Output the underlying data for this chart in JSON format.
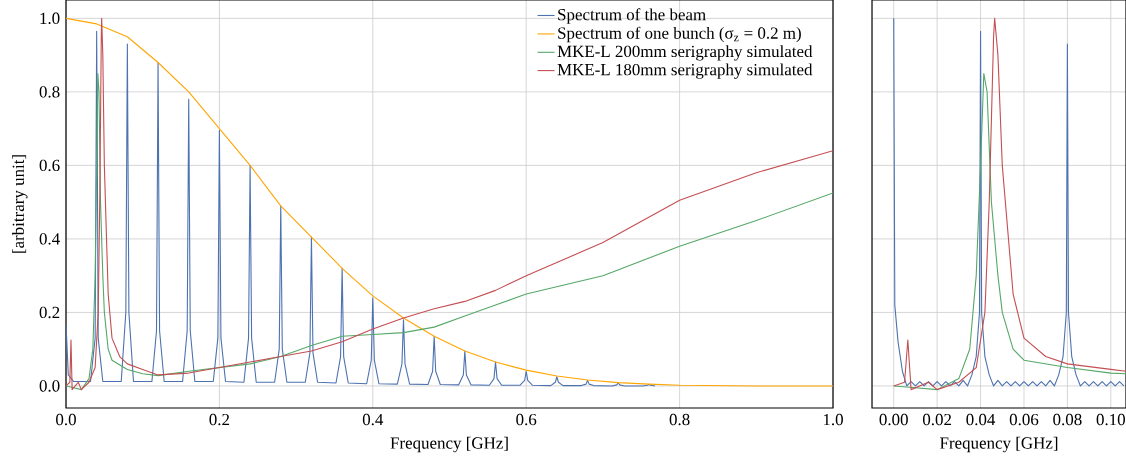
{
  "chart_data": [
    {
      "type": "line",
      "xlabel": "Frequency [GHz]",
      "ylabel": "[arbitrary unit]",
      "xlim": [
        0,
        1.0
      ],
      "ylim": [
        -0.06,
        1.05
      ],
      "xticks": [
        {
          "value": 0,
          "label": "0.0"
        },
        {
          "value": 0.2,
          "label": "0.2"
        },
        {
          "value": 0.4,
          "label": "0.4"
        },
        {
          "value": 0.6,
          "label": "0.6"
        },
        {
          "value": 0.8,
          "label": "0.8"
        },
        {
          "value": 1.0,
          "label": "1.0"
        }
      ],
      "yticks": [
        {
          "value": 0,
          "label": "0.0"
        },
        {
          "value": 0.2,
          "label": "0.2"
        },
        {
          "value": 0.4,
          "label": "0.4"
        },
        {
          "value": 0.6,
          "label": "0.6"
        },
        {
          "value": 0.8,
          "label": "0.8"
        },
        {
          "value": 1.0,
          "label": "1.0"
        }
      ],
      "grid": true,
      "legend": "top right",
      "marker": "none",
      "line_style": "solid",
      "series": [
        {
          "name": "Spectrum of the beam",
          "color": "#4c72b0",
          "x": [
            0,
            0.003,
            0.01,
            0.032,
            0.038,
            0.04,
            0.042,
            0.048,
            0.072,
            0.078,
            0.08,
            0.082,
            0.088,
            0.112,
            0.118,
            0.12,
            0.122,
            0.128,
            0.152,
            0.158,
            0.16,
            0.162,
            0.168,
            0.192,
            0.198,
            0.2,
            0.202,
            0.208,
            0.232,
            0.238,
            0.24,
            0.242,
            0.248,
            0.272,
            0.278,
            0.28,
            0.282,
            0.288,
            0.312,
            0.318,
            0.32,
            0.322,
            0.328,
            0.352,
            0.358,
            0.36,
            0.362,
            0.368,
            0.392,
            0.398,
            0.4,
            0.402,
            0.408,
            0.432,
            0.438,
            0.44,
            0.442,
            0.448,
            0.472,
            0.478,
            0.48,
            0.482,
            0.488,
            0.512,
            0.518,
            0.52,
            0.522,
            0.528,
            0.552,
            0.558,
            0.56,
            0.562,
            0.568,
            0.592,
            0.598,
            0.6,
            0.602,
            0.608,
            0.632,
            0.638,
            0.64,
            0.642,
            0.648,
            0.672,
            0.678,
            0.68,
            0.682,
            0.688,
            0.712,
            0.718,
            0.72,
            0.722,
            0.728,
            0.752,
            0.758,
            0.76,
            0.762,
            0.768
          ],
          "values": [
            0.17,
            0.03,
            0.012,
            0.012,
            0.13,
            0.965,
            0.13,
            0.012,
            0.012,
            0.2,
            0.93,
            0.2,
            0.012,
            0.012,
            0.15,
            0.88,
            0.15,
            0.012,
            0.012,
            0.15,
            0.78,
            0.15,
            0.012,
            0.012,
            0.13,
            0.695,
            0.13,
            0.012,
            0.01,
            0.13,
            0.6,
            0.13,
            0.01,
            0.01,
            0.1,
            0.49,
            0.1,
            0.01,
            0.01,
            0.09,
            0.405,
            0.09,
            0.01,
            0.008,
            0.08,
            0.32,
            0.08,
            0.008,
            0.006,
            0.07,
            0.24,
            0.07,
            0.006,
            0.005,
            0.06,
            0.18,
            0.06,
            0.005,
            0.004,
            0.04,
            0.135,
            0.04,
            0.004,
            0.003,
            0.03,
            0.095,
            0.03,
            0.003,
            0.002,
            0.02,
            0.065,
            0.02,
            0.002,
            0.002,
            0.015,
            0.04,
            0.015,
            0.002,
            0.001,
            0.01,
            0.025,
            0.01,
            0.001,
            0.001,
            0.005,
            0.015,
            0.005,
            0.001,
            0,
            0.003,
            0.008,
            0.003,
            0,
            0,
            0.002,
            0.004,
            0.002,
            0
          ]
        },
        {
          "name": "Spectrum of one bunch (σ$_{z}$ = 0.2 m)",
          "color": "#ffa500",
          "x": [
            0,
            0.04,
            0.08,
            0.12,
            0.16,
            0.2,
            0.24,
            0.28,
            0.32,
            0.36,
            0.4,
            0.44,
            0.48,
            0.52,
            0.56,
            0.6,
            0.64,
            0.68,
            0.72,
            0.76,
            0.8,
            0.9,
            1.0
          ],
          "values": [
            1.0,
            0.985,
            0.95,
            0.88,
            0.8,
            0.7,
            0.6,
            0.49,
            0.405,
            0.32,
            0.245,
            0.185,
            0.135,
            0.095,
            0.065,
            0.043,
            0.027,
            0.016,
            0.009,
            0.005,
            0.002,
            0,
            0
          ]
        },
        {
          "name": "MKE-L 200mm serigraphy simulated",
          "color": "#55a868",
          "x": [
            0,
            0.01,
            0.02,
            0.03,
            0.035,
            0.038,
            0.04,
            0.0415,
            0.043,
            0.045,
            0.048,
            0.05,
            0.055,
            0.06,
            0.08,
            0.1,
            0.12,
            0.16,
            0.2,
            0.24,
            0.28,
            0.32,
            0.36,
            0.4,
            0.44,
            0.48,
            0.52,
            0.56,
            0.6,
            0.7,
            0.8,
            0.9,
            1.0
          ],
          "values": [
            0,
            -0.005,
            -0.01,
            0.02,
            0.1,
            0.3,
            0.6,
            0.85,
            0.8,
            0.5,
            0.3,
            0.2,
            0.1,
            0.07,
            0.045,
            0.033,
            0.028,
            0.04,
            0.05,
            0.06,
            0.08,
            0.11,
            0.135,
            0.14,
            0.145,
            0.16,
            0.19,
            0.22,
            0.25,
            0.3,
            0.38,
            0.45,
            0.525
          ]
        },
        {
          "name": "MKE-L 180mm serigraphy simulated",
          "color": "#c44e52",
          "x": [
            0,
            0.005,
            0.0065,
            0.008,
            0.012,
            0.016,
            0.02,
            0.03,
            0.038,
            0.042,
            0.044,
            0.046,
            0.0465,
            0.048,
            0.05,
            0.055,
            0.06,
            0.07,
            0.08,
            0.1,
            0.12,
            0.16,
            0.2,
            0.24,
            0.28,
            0.32,
            0.36,
            0.4,
            0.44,
            0.48,
            0.52,
            0.56,
            0.6,
            0.7,
            0.8,
            0.9,
            1.0
          ],
          "values": [
            0,
            0.01,
            0.125,
            -0.01,
            0,
            0.01,
            -0.01,
            0.01,
            0.05,
            0.2,
            0.5,
            0.95,
            1.0,
            0.9,
            0.6,
            0.25,
            0.13,
            0.08,
            0.06,
            0.045,
            0.03,
            0.035,
            0.05,
            0.065,
            0.08,
            0.095,
            0.12,
            0.155,
            0.185,
            0.21,
            0.23,
            0.26,
            0.3,
            0.39,
            0.505,
            0.58,
            0.64
          ]
        }
      ]
    },
    {
      "type": "line",
      "xlabel": "Frequency [GHz]",
      "xlim": [
        -0.01,
        0.107
      ],
      "ylim": [
        -0.06,
        1.05
      ],
      "xticks": [
        {
          "value": 0,
          "label": "0.00"
        },
        {
          "value": 0.02,
          "label": "0.02"
        },
        {
          "value": 0.04,
          "label": "0.04"
        },
        {
          "value": 0.06,
          "label": "0.06"
        },
        {
          "value": 0.08,
          "label": "0.08"
        },
        {
          "value": 0.1,
          "label": "0.10"
        }
      ],
      "yticks": [
        {
          "value": 0,
          "label": null
        },
        {
          "value": 0.2,
          "label": null
        },
        {
          "value": 0.4,
          "label": null
        },
        {
          "value": 0.6,
          "label": null
        },
        {
          "value": 0.8,
          "label": null
        },
        {
          "value": 1.0,
          "label": null
        }
      ],
      "tick_labels": "x",
      "grid": true,
      "marker": "none",
      "line_style": "solid",
      "series": [
        {
          "color": "#4c72b0",
          "x": [
            0,
            0.0005,
            0.002,
            0.004,
            0.006,
            0.008,
            0.01,
            0.012,
            0.014,
            0.016,
            0.018,
            0.02,
            0.022,
            0.024,
            0.026,
            0.028,
            0.03,
            0.032,
            0.034,
            0.036,
            0.038,
            0.0395,
            0.04,
            0.0405,
            0.042,
            0.044,
            0.046,
            0.048,
            0.05,
            0.052,
            0.054,
            0.056,
            0.058,
            0.06,
            0.062,
            0.064,
            0.066,
            0.068,
            0.07,
            0.072,
            0.074,
            0.076,
            0.078,
            0.0795,
            0.08,
            0.0805,
            0.082,
            0.084,
            0.086,
            0.088,
            0.09,
            0.092,
            0.094,
            0.096,
            0.098,
            0.1,
            0.102,
            0.104,
            0.106
          ],
          "values": [
            1.0,
            0.22,
            0.12,
            0.04,
            0,
            0.012,
            0,
            0.012,
            0,
            0.012,
            0,
            0.012,
            0,
            0.012,
            0,
            0.012,
            0,
            0.015,
            0,
            0.03,
            0.08,
            0.2,
            0.965,
            0.2,
            0.08,
            0.03,
            0,
            0.015,
            0,
            0.012,
            0,
            0.012,
            0,
            0.012,
            0,
            0.012,
            0,
            0.012,
            0,
            0.015,
            0,
            0.03,
            0.08,
            0.2,
            0.93,
            0.2,
            0.08,
            0.03,
            0,
            0.012,
            0,
            0.012,
            0,
            0.012,
            0,
            0.012,
            0,
            0.012,
            0
          ]
        },
        {
          "color": "#55a868",
          "x": [
            0,
            0.01,
            0.02,
            0.03,
            0.035,
            0.038,
            0.04,
            0.0415,
            0.043,
            0.045,
            0.048,
            0.05,
            0.055,
            0.06,
            0.08,
            0.1,
            0.107
          ],
          "values": [
            0,
            -0.005,
            -0.01,
            0.02,
            0.1,
            0.3,
            0.6,
            0.85,
            0.8,
            0.5,
            0.3,
            0.2,
            0.1,
            0.07,
            0.05,
            0.035,
            0.033
          ]
        },
        {
          "color": "#c44e52",
          "x": [
            0,
            0.005,
            0.0065,
            0.008,
            0.012,
            0.016,
            0.02,
            0.03,
            0.038,
            0.042,
            0.044,
            0.046,
            0.0465,
            0.048,
            0.05,
            0.055,
            0.06,
            0.07,
            0.08,
            0.1,
            0.107
          ],
          "values": [
            0,
            0.01,
            0.125,
            -0.01,
            0,
            0.01,
            -0.01,
            0.01,
            0.05,
            0.2,
            0.5,
            0.95,
            1.0,
            0.9,
            0.6,
            0.25,
            0.13,
            0.08,
            0.06,
            0.045,
            0.04
          ]
        }
      ]
    }
  ]
}
